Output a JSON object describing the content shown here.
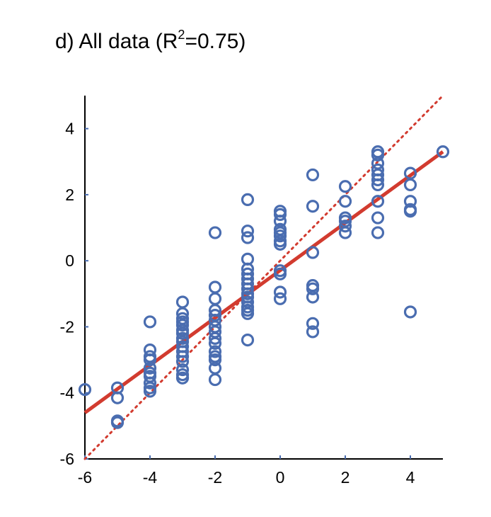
{
  "chart_data": {
    "type": "scatter",
    "title_prefix": "d) All data (R",
    "title_sup": "2",
    "title_suffix": "=0.75)",
    "xlabel": "",
    "ylabel": "",
    "xlim": [
      -6,
      5
    ],
    "ylim": [
      -6,
      5
    ],
    "xticks": [
      -6,
      -4,
      -2,
      0,
      2,
      4
    ],
    "yticks": [
      -6,
      -4,
      -2,
      0,
      2,
      4
    ],
    "x_tick_labels": [
      "-6",
      "-4",
      "-2",
      "0",
      "2",
      "4"
    ],
    "y_tick_labels": [
      "-6",
      "-4",
      "-2",
      "0",
      "2",
      "4"
    ],
    "grid": false,
    "colors": {
      "points": "#4a6db0",
      "fit_line": "#d23b2f",
      "identity_line": "#d23b2f"
    },
    "fit_line": {
      "style": "solid",
      "points": [
        [
          -6,
          -4.6
        ],
        [
          5,
          3.3
        ]
      ]
    },
    "identity_line": {
      "style": "dotted",
      "points": [
        [
          -6,
          -6
        ],
        [
          5,
          5
        ]
      ]
    },
    "points": [
      [
        -6,
        -3.9
      ],
      [
        -5,
        -3.85
      ],
      [
        -5,
        -4.15
      ],
      [
        -5,
        -4.85
      ],
      [
        -5,
        -4.9
      ],
      [
        -4,
        -1.85
      ],
      [
        -4,
        -2.7
      ],
      [
        -4,
        -2.9
      ],
      [
        -4,
        -3.0
      ],
      [
        -4,
        -3.25
      ],
      [
        -4,
        -3.4
      ],
      [
        -4,
        -3.5
      ],
      [
        -4,
        -3.7
      ],
      [
        -4,
        -3.85
      ],
      [
        -4,
        -3.95
      ],
      [
        -3,
        -1.25
      ],
      [
        -3,
        -1.6
      ],
      [
        -3,
        -1.75
      ],
      [
        -3,
        -1.85
      ],
      [
        -3,
        -1.95
      ],
      [
        -3,
        -2.1
      ],
      [
        -3,
        -2.2
      ],
      [
        -3,
        -2.35
      ],
      [
        -3,
        -2.45
      ],
      [
        -3,
        -2.6
      ],
      [
        -3,
        -2.75
      ],
      [
        -3,
        -2.9
      ],
      [
        -3,
        -3.05
      ],
      [
        -3,
        -3.3
      ],
      [
        -3,
        -3.45
      ],
      [
        -3,
        -3.55
      ],
      [
        -2,
        0.85
      ],
      [
        -2,
        -0.8
      ],
      [
        -2,
        -1.15
      ],
      [
        -2,
        -1.5
      ],
      [
        -2,
        -1.65
      ],
      [
        -2,
        -1.8
      ],
      [
        -2,
        -2.0
      ],
      [
        -2,
        -2.15
      ],
      [
        -2,
        -2.35
      ],
      [
        -2,
        -2.5
      ],
      [
        -2,
        -2.75
      ],
      [
        -2,
        -2.9
      ],
      [
        -2,
        -3.0
      ],
      [
        -2,
        -3.25
      ],
      [
        -2,
        -3.6
      ],
      [
        -1,
        1.85
      ],
      [
        -1,
        0.9
      ],
      [
        -1,
        0.7
      ],
      [
        -1,
        0.05
      ],
      [
        -1,
        -0.25
      ],
      [
        -1,
        -0.4
      ],
      [
        -1,
        -0.55
      ],
      [
        -1,
        -0.7
      ],
      [
        -1,
        -0.85
      ],
      [
        -1,
        -1.0
      ],
      [
        -1,
        -1.1
      ],
      [
        -1,
        -1.25
      ],
      [
        -1,
        -1.4
      ],
      [
        -1,
        -1.5
      ],
      [
        -1,
        -1.6
      ],
      [
        -1,
        -2.4
      ],
      [
        0,
        1.5
      ],
      [
        0,
        1.4
      ],
      [
        0,
        1.2
      ],
      [
        0,
        0.95
      ],
      [
        0,
        0.85
      ],
      [
        0,
        0.75
      ],
      [
        0,
        0.6
      ],
      [
        0,
        0.5
      ],
      [
        0,
        -0.3
      ],
      [
        0,
        -0.4
      ],
      [
        0,
        -0.95
      ],
      [
        0,
        -1.15
      ],
      [
        1,
        2.6
      ],
      [
        1,
        1.65
      ],
      [
        1,
        0.25
      ],
      [
        1,
        -0.75
      ],
      [
        1,
        -0.85
      ],
      [
        1,
        -1.1
      ],
      [
        1,
        -1.9
      ],
      [
        1,
        -2.15
      ],
      [
        2,
        2.25
      ],
      [
        2,
        1.8
      ],
      [
        2,
        1.3
      ],
      [
        2,
        1.2
      ],
      [
        2,
        1.05
      ],
      [
        2,
        0.85
      ],
      [
        3,
        3.3
      ],
      [
        3,
        3.2
      ],
      [
        3,
        2.95
      ],
      [
        3,
        2.75
      ],
      [
        3,
        2.6
      ],
      [
        3,
        2.45
      ],
      [
        3,
        2.3
      ],
      [
        3,
        1.8
      ],
      [
        3,
        1.3
      ],
      [
        3,
        0.85
      ],
      [
        4,
        2.65
      ],
      [
        4,
        2.3
      ],
      [
        4,
        1.8
      ],
      [
        4,
        1.55
      ],
      [
        4,
        1.5
      ],
      [
        4,
        -1.55
      ],
      [
        5,
        3.3
      ]
    ]
  }
}
